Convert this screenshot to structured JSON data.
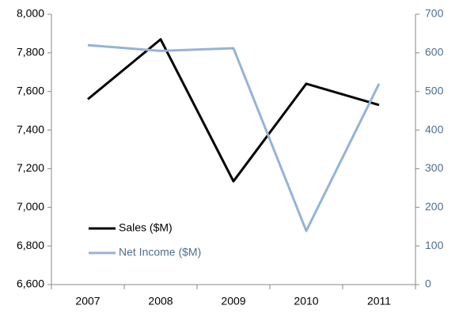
{
  "chart_data": {
    "type": "line",
    "categories": [
      "2007",
      "2008",
      "2009",
      "2010",
      "2011"
    ],
    "series": [
      {
        "name": "Sales ($M)",
        "color": "#000000",
        "values": [
          7560,
          7870,
          7135,
          7640,
          7530
        ]
      },
      {
        "name": "Net Income ($M)",
        "color": "#95b3d7",
        "axis": "y2",
        "values": [
          620,
          605,
          612,
          139,
          520
        ]
      }
    ],
    "ylim": [
      6600,
      8000
    ],
    "yticks": [
      {
        "value": 6600,
        "label": "6,600"
      },
      {
        "value": 6800,
        "label": "6,800"
      },
      {
        "value": 7000,
        "label": "7,000"
      },
      {
        "value": 7200,
        "label": "7,200"
      },
      {
        "value": 7400,
        "label": "7,400"
      },
      {
        "value": 7600,
        "label": "7,600"
      },
      {
        "value": 7800,
        "label": "7,800"
      },
      {
        "value": 8000,
        "label": "8,000"
      }
    ],
    "y2lim": [
      0,
      700
    ],
    "y2ticks": [
      0,
      100,
      200,
      300,
      400,
      500,
      600,
      700
    ],
    "y2_label_color": "#4f6f8f",
    "grid": false,
    "legend": "lower left"
  }
}
